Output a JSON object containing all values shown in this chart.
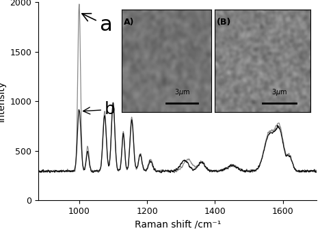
{
  "title": "",
  "xlabel": "Raman shift /cm⁻¹",
  "ylabel": "Intensity",
  "xlim": [
    880,
    1700
  ],
  "ylim": [
    0,
    2000
  ],
  "yticks": [
    0,
    500,
    1000,
    1500,
    2000
  ],
  "xticks": [
    1000,
    1200,
    1400,
    1600
  ],
  "label_a": "a",
  "label_b": "b",
  "curve_a_color": "#888888",
  "curve_b_color": "#111111",
  "background": "#ffffff",
  "label_fontsize": 11,
  "axis_fontsize": 10,
  "tick_fontsize": 9
}
